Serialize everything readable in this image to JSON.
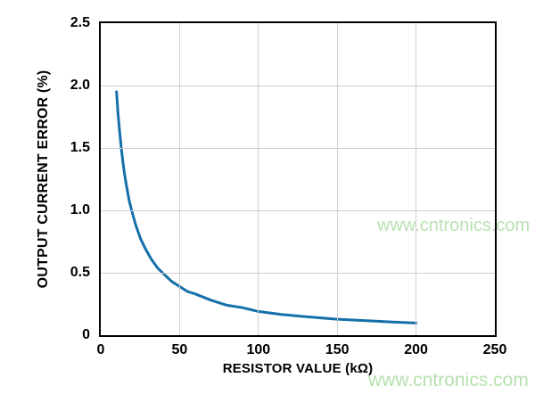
{
  "watermarks": {
    "text": "www.cntronics.com",
    "color": "#b7e0af"
  },
  "chart_data": {
    "type": "line",
    "title": "",
    "xlabel": "RESISTOR VALUE (kΩ)",
    "ylabel": "OUTPUT CURRENT ERROR (%)",
    "xlim": [
      0,
      250
    ],
    "ylim": [
      0,
      2.5
    ],
    "grid": true,
    "legend_position": "none",
    "line_color": "#156fa9",
    "grid_color": "#d0d0d0",
    "frame_color": "#000000",
    "x_ticks": [
      {
        "v": 0,
        "label": "0"
      },
      {
        "v": 50,
        "label": "50"
      },
      {
        "v": 100,
        "label": "100"
      },
      {
        "v": 150,
        "label": "150"
      },
      {
        "v": 200,
        "label": "200"
      },
      {
        "v": 250,
        "label": "250"
      }
    ],
    "y_ticks": [
      {
        "v": 0,
        "label": "0"
      },
      {
        "v": 0.5,
        "label": "0.5"
      },
      {
        "v": 1,
        "label": "1.0"
      },
      {
        "v": 1.5,
        "label": "1.5"
      },
      {
        "v": 2,
        "label": "2.0"
      },
      {
        "v": 2.5,
        "label": "2.5"
      }
    ],
    "series": [
      {
        "name": "output current error vs resistor value",
        "points": [
          [
            10,
            1.95
          ],
          [
            11,
            1.77
          ],
          [
            12,
            1.63
          ],
          [
            13,
            1.5
          ],
          [
            14,
            1.39
          ],
          [
            15,
            1.3
          ],
          [
            16,
            1.22
          ],
          [
            18,
            1.08
          ],
          [
            20,
            0.98
          ],
          [
            22,
            0.89
          ],
          [
            25,
            0.78
          ],
          [
            28,
            0.7
          ],
          [
            32,
            0.61
          ],
          [
            36,
            0.54
          ],
          [
            40,
            0.49
          ],
          [
            45,
            0.43
          ],
          [
            50,
            0.39
          ],
          [
            55,
            0.35
          ],
          [
            60,
            0.33
          ],
          [
            70,
            0.28
          ],
          [
            80,
            0.24
          ],
          [
            90,
            0.22
          ],
          [
            100,
            0.19
          ],
          [
            115,
            0.165
          ],
          [
            130,
            0.148
          ],
          [
            150,
            0.128
          ],
          [
            170,
            0.115
          ],
          [
            185,
            0.105
          ],
          [
            200,
            0.097
          ]
        ]
      }
    ]
  }
}
